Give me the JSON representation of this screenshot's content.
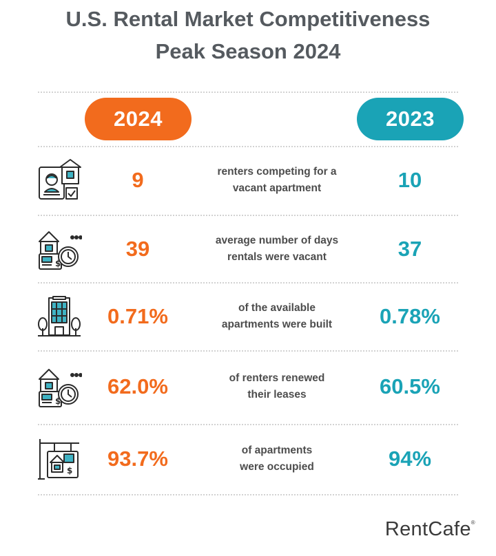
{
  "title": {
    "line1": "U.S. Rental Market Competitiveness",
    "line2": "Peak Season 2024"
  },
  "columns": {
    "left_year": "2024",
    "right_year": "2023"
  },
  "colors": {
    "accent_2024": "#f26b1d",
    "accent_2023": "#1aa3b6"
  },
  "rows": [
    {
      "icon": "renter-application-icon",
      "value_2024": "9",
      "label_line1": "renters competing for a",
      "label_line2": "vacant apartment",
      "value_2023": "10"
    },
    {
      "icon": "vacancy-days-clock-icon",
      "value_2024": "39",
      "label_line1": "average number of days",
      "label_line2": "rentals were vacant",
      "value_2023": "37"
    },
    {
      "icon": "new-building-icon",
      "value_2024": "0.71%",
      "label_line1": "of the available",
      "label_line2": "apartments were built",
      "value_2023": "0.78%"
    },
    {
      "icon": "lease-renewal-clock-icon",
      "value_2024": "62.0%",
      "label_line1": "of renters renewed",
      "label_line2": "their leases",
      "value_2023": "60.5%"
    },
    {
      "icon": "occupied-sign-icon",
      "value_2024": "93.7%",
      "label_line1": "of apartments",
      "label_line2": "were occupied",
      "value_2023": "94%"
    }
  ],
  "brand": {
    "name": "RentCafe",
    "mark": "®"
  }
}
